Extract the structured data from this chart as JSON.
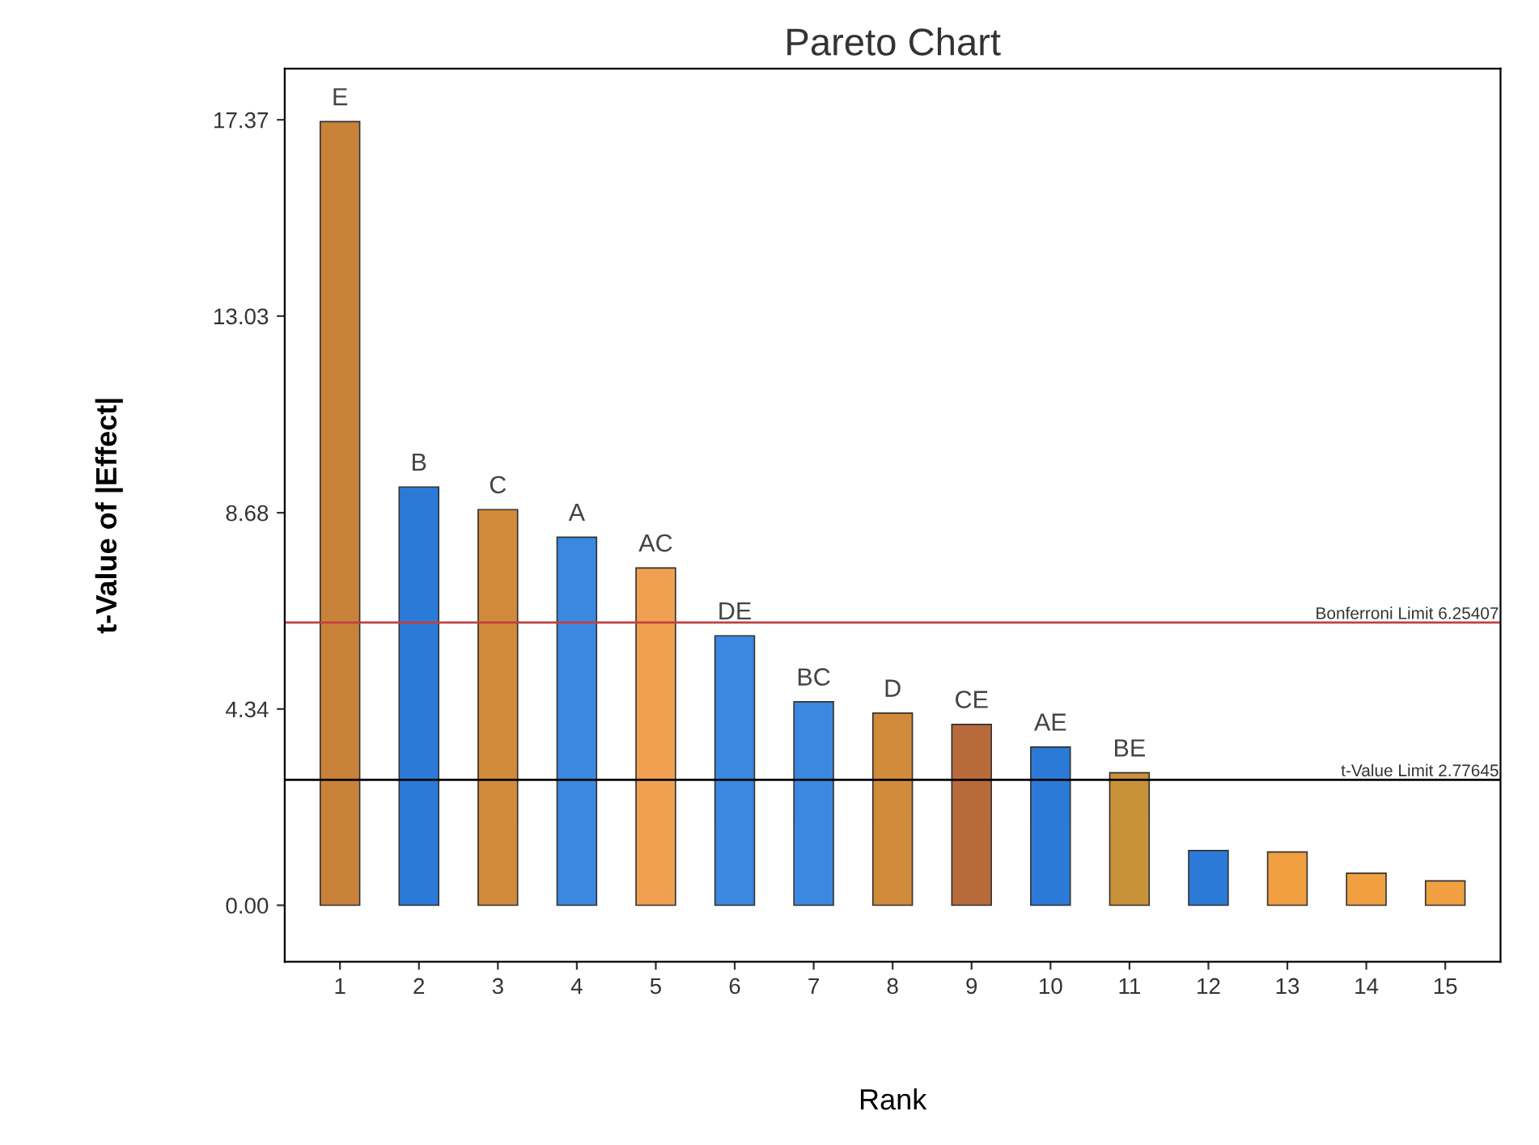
{
  "chart_data": {
    "type": "bar",
    "title": "Pareto Chart",
    "xlabel": "Rank",
    "ylabel": "t-Value of |Effect|",
    "categories": [
      "1",
      "2",
      "3",
      "4",
      "5",
      "6",
      "7",
      "8",
      "9",
      "10",
      "11",
      "12",
      "13",
      "14",
      "15"
    ],
    "values": [
      17.33,
      9.25,
      8.75,
      8.14,
      7.46,
      5.96,
      4.5,
      4.25,
      4.0,
      3.5,
      2.93,
      1.21,
      1.18,
      0.71,
      0.54
    ],
    "colors": [
      "#c8823a",
      "#2b7ad8",
      "#d08a3a",
      "#3a88e0",
      "#f0a050",
      "#3a88e0",
      "#3a88e0",
      "#d08a3a",
      "#b86a3a",
      "#2b7ad8",
      "#c8923a",
      "#2b7ad8",
      "#f0a040",
      "#f0a040",
      "#f0a040"
    ],
    "ylim": [
      -1.25,
      18.5
    ],
    "yticks": [
      {
        "value": 0,
        "label": "0.00"
      },
      {
        "value": 4.34,
        "label": "4.34"
      },
      {
        "value": 8.68,
        "label": "8.68"
      },
      {
        "value": 13.03,
        "label": "13.03"
      },
      {
        "value": 17.37,
        "label": "17.37"
      }
    ],
    "ref_lines": [
      {
        "axis": "y",
        "value": 6.25407,
        "label": "Bonferroni Limit 6.25407",
        "color": "#c04040"
      },
      {
        "axis": "y",
        "value": 2.77645,
        "label": "t-Value Limit 2.77645",
        "color": "#000000"
      }
    ],
    "annotations": [
      {
        "text": "E",
        "x": "1",
        "y": 17.33
      },
      {
        "text": "B",
        "x": "2",
        "y": 9.25
      },
      {
        "text": "C",
        "x": "3",
        "y": 8.75
      },
      {
        "text": "A",
        "x": "4",
        "y": 8.14
      },
      {
        "text": "AC",
        "x": "5",
        "y": 7.46
      },
      {
        "text": "DE",
        "x": "6",
        "y": 5.96
      },
      {
        "text": "BC",
        "x": "7",
        "y": 4.5
      },
      {
        "text": "D",
        "x": "8",
        "y": 4.25
      },
      {
        "text": "CE",
        "x": "9",
        "y": 4.0
      },
      {
        "text": "AE",
        "x": "10",
        "y": 3.5
      },
      {
        "text": "BE",
        "x": "11",
        "y": 2.93
      }
    ],
    "grid": false,
    "legend": false
  }
}
